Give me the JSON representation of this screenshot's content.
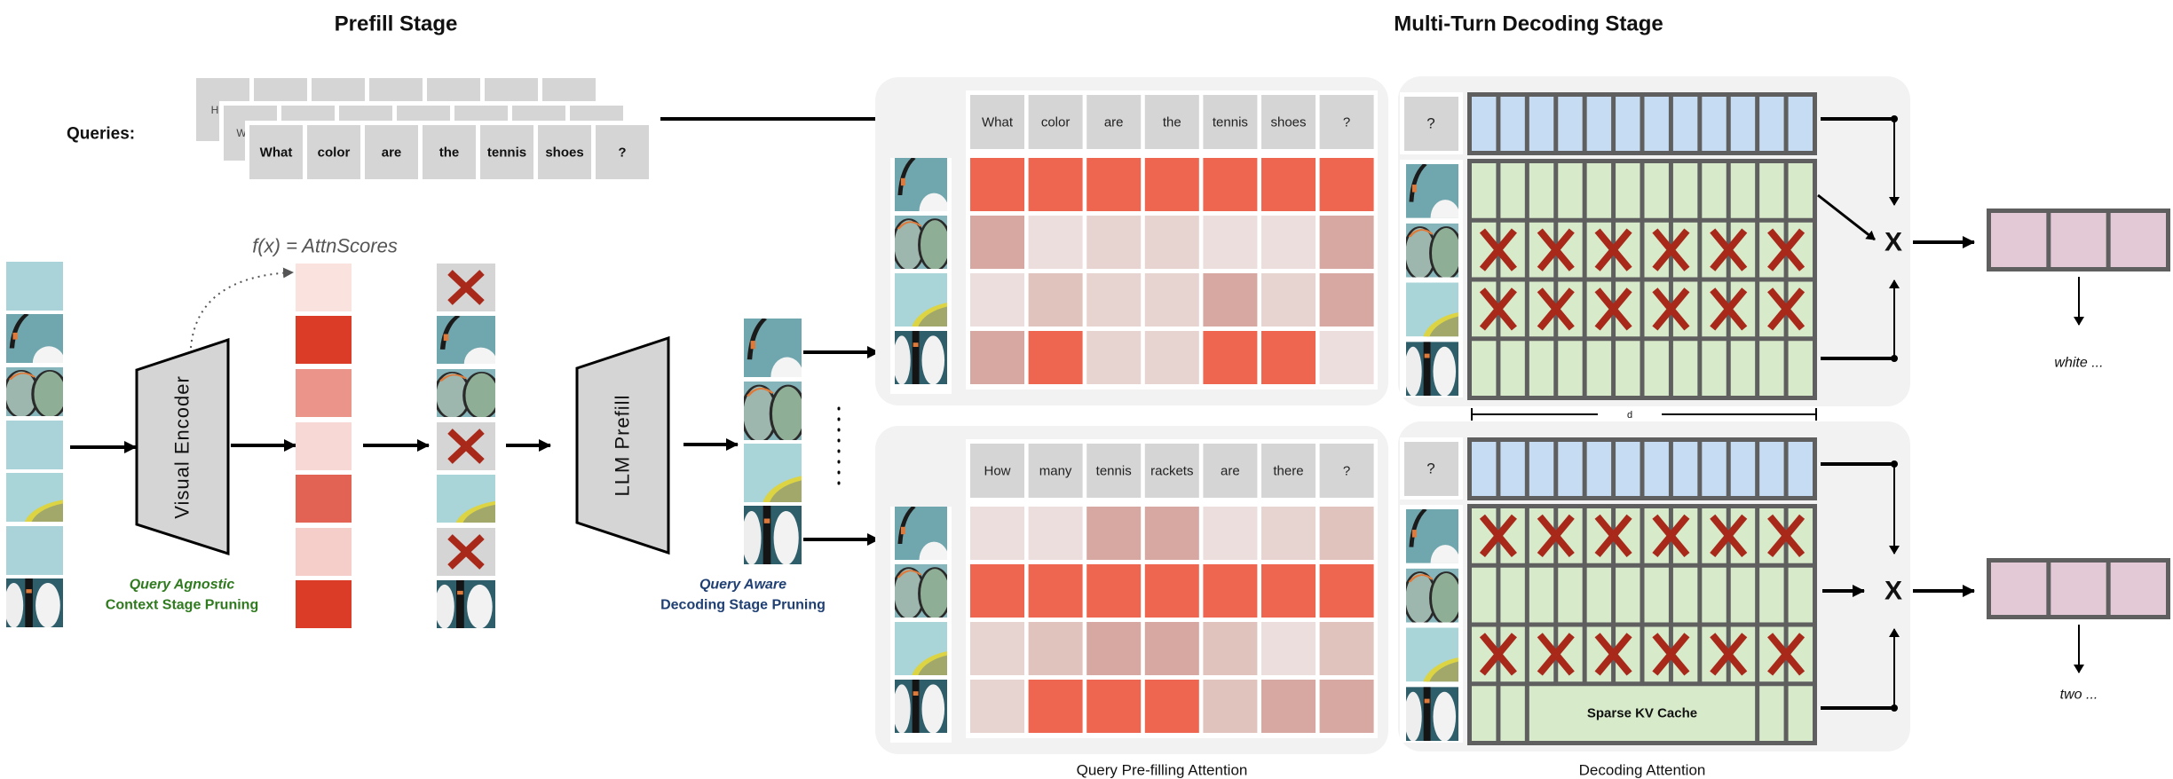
{
  "titles": {
    "prefill": "Prefill Stage",
    "decoding": "Multi-Turn Decoding Stage"
  },
  "queries_label": "Queries:",
  "query_stack": {
    "back_visible": "H",
    "middle_visible": "W",
    "front": [
      "What",
      "color",
      "are",
      "the",
      "tennis",
      "shoes",
      "?"
    ]
  },
  "formula": "f(x) = AttnScores",
  "visual_encoder": "Visual Encoder",
  "llm_prefill": "LLM Prefill",
  "context_pruning": {
    "line1": "Query Agnostic",
    "line2": "Context Stage Pruning"
  },
  "decoding_pruning": {
    "line1": "Query Aware",
    "line2": "Decoding Stage Pruning"
  },
  "input_patches": [
    "sky",
    "racket-shoe",
    "rackets",
    "sky",
    "yellow-racket",
    "sky",
    "shoes"
  ],
  "attn_scores": [
    0.15,
    1.0,
    0.55,
    0.2,
    0.8,
    0.25,
    1.0
  ],
  "pruned_patches": [
    true,
    false,
    false,
    true,
    false,
    true,
    false
  ],
  "kept_tokens": [
    "racket-shoe",
    "rackets",
    "yellow-racket",
    "shoes"
  ],
  "turns": [
    {
      "query": [
        "What",
        "color",
        "are",
        "the",
        "tennis",
        "shoes",
        "?"
      ],
      "attention_levels": [
        [
          4,
          4,
          4,
          4,
          4,
          4,
          4
        ],
        [
          3,
          0,
          1,
          1,
          0,
          0,
          3
        ],
        [
          0,
          2,
          1,
          1,
          3,
          1,
          3
        ],
        [
          3,
          4,
          1,
          1,
          4,
          4,
          0
        ]
      ],
      "decode_token": "?",
      "pruned_rows": [
        1,
        2
      ],
      "sparse_label": "",
      "output": "white ..."
    },
    {
      "query": [
        "How",
        "many",
        "tennis",
        "rackets",
        "are",
        "there",
        "?"
      ],
      "attention_levels": [
        [
          0,
          0,
          3,
          3,
          0,
          1,
          2
        ],
        [
          4,
          4,
          4,
          4,
          4,
          4,
          4
        ],
        [
          1,
          2,
          3,
          3,
          2,
          0,
          2
        ],
        [
          1,
          4,
          4,
          4,
          2,
          3,
          3
        ]
      ],
      "decode_token": "?",
      "pruned_rows": [
        0,
        2
      ],
      "sparse_label": "Sparse KV Cache",
      "output": "two ..."
    }
  ],
  "multiply_symbol": "X",
  "d_label": "d",
  "captions": {
    "prefill_attention": "Query Pre-filling Attention",
    "decoding_attention": "Decoding Attention"
  },
  "colors": {
    "token_cell": "#d5d5d5",
    "panel_bg": "#f2f2f2",
    "score_max": "#db3c28",
    "heat_levels": [
      "#ebdedc",
      "#e7d4d1",
      "#e1c3be",
      "#d6a8a1",
      "#ee6650"
    ],
    "query_vector": "#c6dcf2",
    "kv_cache": "#d7eaca",
    "output_cell": "#e3c8d6",
    "frame": "#5f5f5f",
    "prune_x": "#a8291a",
    "context_green": "#2f7a1f",
    "decoding_blue": "#1f3f73"
  }
}
